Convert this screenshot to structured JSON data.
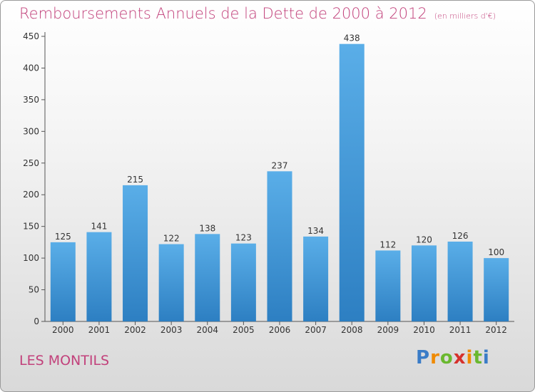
{
  "header": {
    "title": "Remboursements Annuels de la Dette de 2000 à 2012",
    "subtitle": "(en milliers d'€)"
  },
  "commune": "LES MONTILS",
  "logo": {
    "text": "Proxiti"
  },
  "colors": {
    "title": "#c2417b",
    "bar_light": "#5aaee8",
    "bar_dark": "#2d7fc2"
  },
  "chart_data": {
    "type": "bar",
    "title": "Remboursements Annuels de la Dette de 2000 à 2012",
    "ylabel": "",
    "xlabel": "",
    "categories": [
      "2000",
      "2001",
      "2002",
      "2003",
      "2004",
      "2005",
      "2006",
      "2007",
      "2008",
      "2009",
      "2010",
      "2011",
      "2012"
    ],
    "values": [
      125,
      141,
      215,
      122,
      138,
      123,
      237,
      134,
      438,
      112,
      120,
      126,
      100
    ],
    "ylim": [
      0,
      450
    ],
    "yticks": [
      0,
      50,
      100,
      150,
      200,
      250,
      300,
      350,
      400,
      450
    ],
    "grid": false,
    "data_labels": true
  }
}
